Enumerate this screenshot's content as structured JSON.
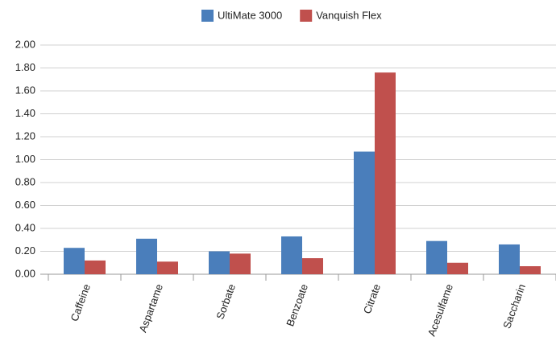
{
  "chart_data": {
    "type": "bar",
    "categories": [
      "Caffeine",
      "Aspartame",
      "Sorbate",
      "Benzoate",
      "Citrate",
      "Acesulfame",
      "Saccharin"
    ],
    "series": [
      {
        "name": "UltiMate 3000",
        "color": "#4a7ebb",
        "values": [
          0.23,
          0.31,
          0.2,
          0.33,
          1.07,
          0.29,
          0.26
        ]
      },
      {
        "name": "Vanquish Flex",
        "color": "#c0504d",
        "values": [
          0.12,
          0.11,
          0.18,
          0.14,
          1.76,
          0.1,
          0.07
        ]
      }
    ],
    "ylim": [
      0,
      2
    ],
    "yticks": [
      {
        "value": 0,
        "label": "0.00"
      },
      {
        "value": 0.2,
        "label": "0.20"
      },
      {
        "value": 0.4,
        "label": "0.40"
      },
      {
        "value": 0.6,
        "label": "0.60"
      },
      {
        "value": 0.8,
        "label": "0.80"
      },
      {
        "value": 1,
        "label": "1.00"
      },
      {
        "value": 1.2,
        "label": "1.20"
      },
      {
        "value": 1.4,
        "label": "1.40"
      },
      {
        "value": 1.6,
        "label": "1.60"
      },
      {
        "value": 1.8,
        "label": "1.80"
      },
      {
        "value": 2,
        "label": "2.00"
      }
    ],
    "grid": true,
    "legend": "top"
  }
}
